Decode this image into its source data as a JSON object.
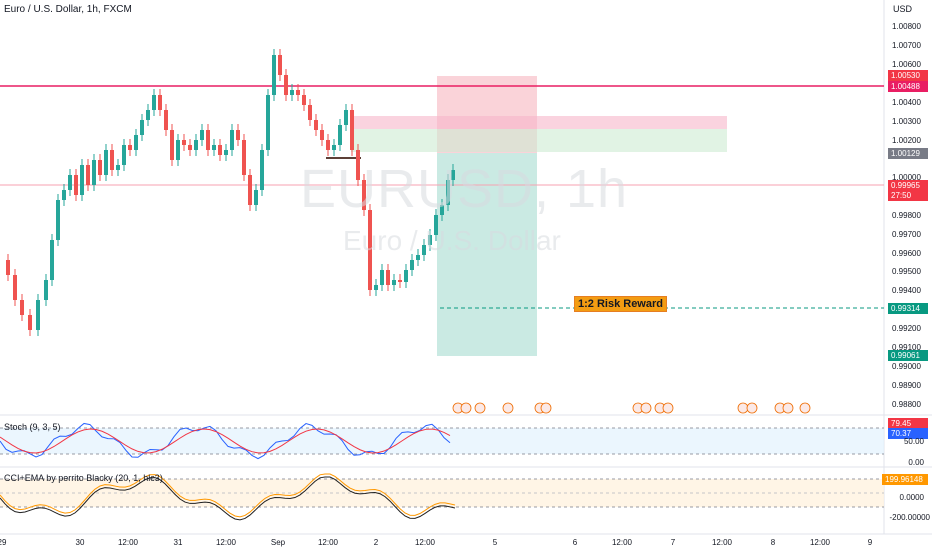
{
  "header": {
    "symbol_title": "Euro / U.S. Dollar, 1h, FXCM"
  },
  "watermark": {
    "ticker": "EURUSD, 1h",
    "name": "Euro / U.S. Dollar"
  },
  "price_axis": {
    "currency": "USD",
    "ticks": [
      "1.00800",
      "1.00700",
      "1.00600",
      "1.00400",
      "1.00300",
      "1.00200",
      "1.00000",
      "0.99800",
      "0.99700",
      "0.99600",
      "0.99500",
      "0.99400",
      "0.99200",
      "0.99100",
      "0.99000",
      "0.98900",
      "0.98800"
    ],
    "tags": {
      "stop_high": "1.00530",
      "resistance": "1.00488",
      "entry": "1.00129",
      "last_price": "0.99965",
      "countdown": "27:50",
      "target_1_2": "0.99314",
      "target_low": "0.99061"
    }
  },
  "stoch_axis": {
    "tags": {
      "k": "79.45",
      "d": "70.37"
    },
    "ticks": [
      "50.00",
      "0.00"
    ]
  },
  "cci_axis": {
    "tags": {
      "cci": "199.96148"
    },
    "ticks": [
      "0.0000",
      "-200.00000"
    ]
  },
  "time_axis": {
    "labels": [
      "29",
      "30",
      "12:00",
      "31",
      "12:00",
      "Sep",
      "12:00",
      "2",
      "12:00",
      "5",
      "6",
      "12:00",
      "7",
      "12:00",
      "8",
      "12:00",
      "9"
    ]
  },
  "indicators": {
    "stoch_label": "Stoch (9, 3, 5)",
    "cci_label": "CCI+EMA by perrito Blacky (20, 1, hlc3)"
  },
  "annotations": {
    "risk_reward": "1:2 Risk Reward"
  },
  "colors": {
    "up": "#26a69a",
    "down": "#ef5350",
    "resistance": "#e91e63",
    "entry_tag": "#787b86",
    "target_tag": "#089981",
    "stoch_k": "#2962ff",
    "stoch_d": "#f23645",
    "cci": "#ff9800"
  }
}
